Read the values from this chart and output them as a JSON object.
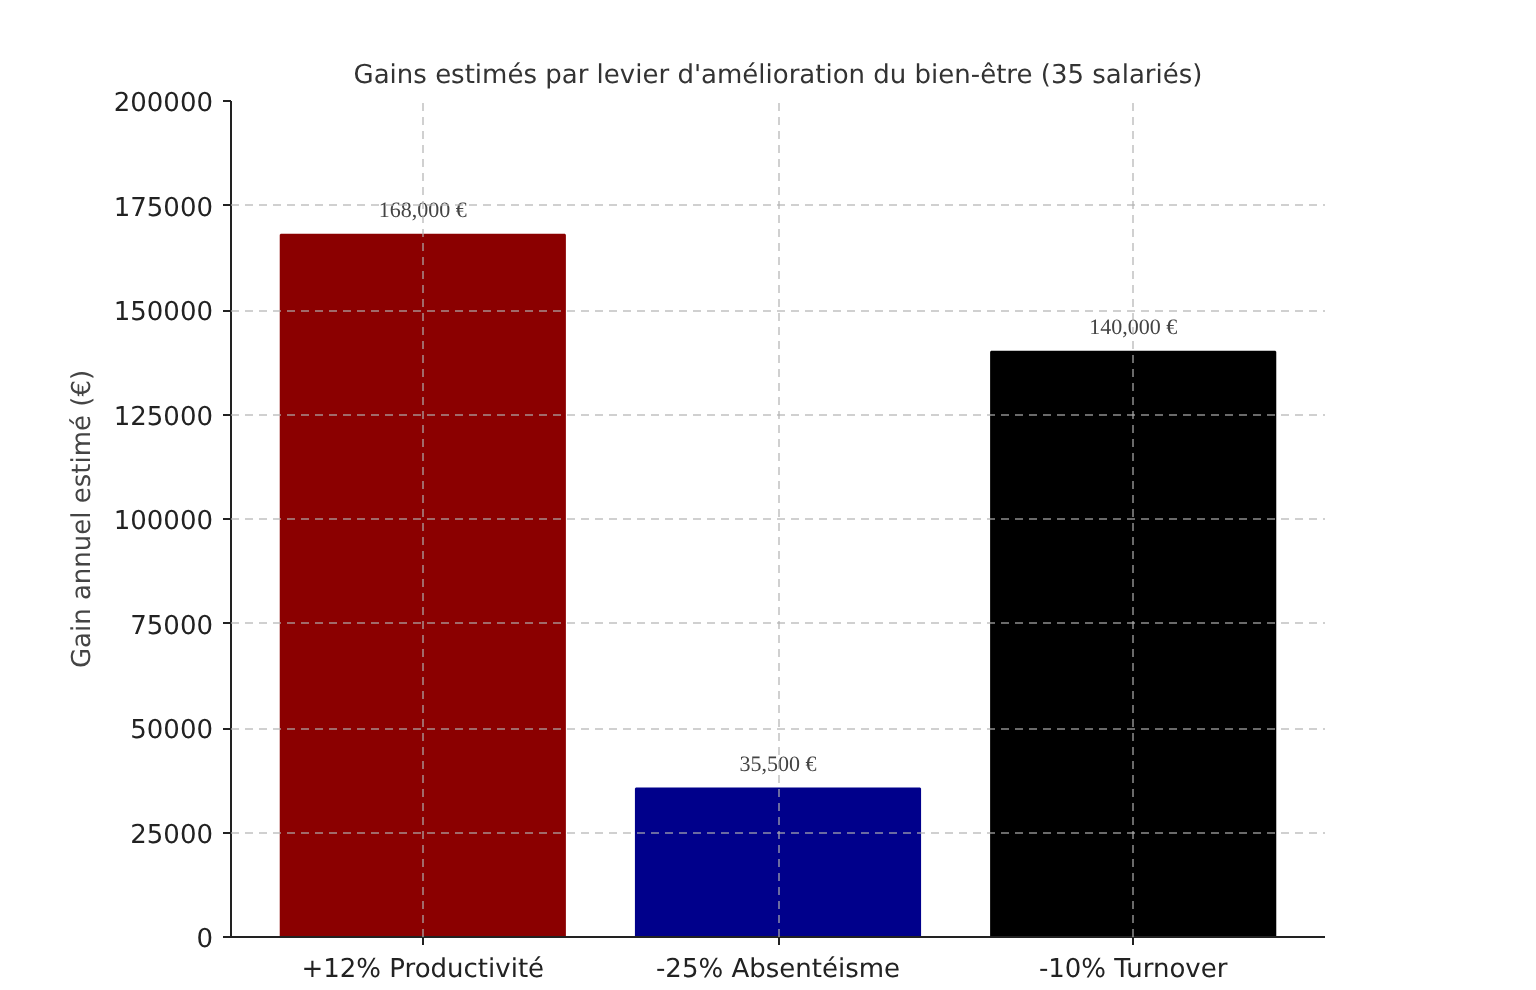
{
  "chart_data": {
    "type": "bar",
    "title": "Gains estimés par levier d'amélioration du bien-être (35 salariés)",
    "ylabel": "Gain annuel estimé (€)",
    "categories": [
      "+12% Productivité",
      "-25% Absentéisme",
      "-10% Turnover"
    ],
    "values": [
      168000,
      35500,
      140000
    ],
    "colors": [
      "#8b0000",
      "#00008b",
      "#000000"
    ],
    "value_labels": [
      "168,000 €",
      "35,500 €",
      "140,000 €"
    ],
    "ylim": [
      0,
      200000
    ],
    "yticks": [
      0,
      25000,
      50000,
      75000,
      100000,
      125000,
      150000,
      175000,
      200000
    ],
    "grid": true
  }
}
